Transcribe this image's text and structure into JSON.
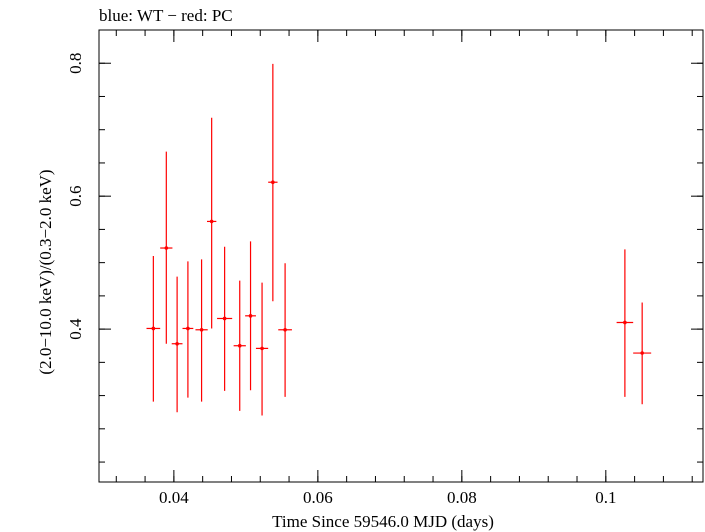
{
  "chart_data": {
    "type": "scatter",
    "title": "blue: WT − red: PC",
    "xlabel": "Time Since 59546.0 MJD (days)",
    "ylabel": "(2.0−10.0 keV)/(0.3−2.0 keV)",
    "xlim": [
      0.0296,
      0.1135
    ],
    "ylim": [
      0.17,
      0.85
    ],
    "x_ticks": [
      0.04,
      0.06,
      0.08,
      0.1
    ],
    "x_tick_labels": [
      "0.04",
      "0.06",
      "0.08",
      "0.1"
    ],
    "y_ticks": [
      0.4,
      0.6,
      0.8
    ],
    "y_tick_labels": [
      "0.4",
      "0.6",
      "0.8"
    ],
    "grid": false,
    "series": [
      {
        "color": "#ff0000",
        "points": [
          {
            "x": 0.03715,
            "xerr": 0.00095,
            "y": 0.401,
            "ylo": 0.291,
            "yhi": 0.51
          },
          {
            "x": 0.03895,
            "xerr": 0.00085,
            "y": 0.522,
            "ylo": 0.378,
            "yhi": 0.667
          },
          {
            "x": 0.04045,
            "xerr": 0.00075,
            "y": 0.378,
            "ylo": 0.275,
            "yhi": 0.479
          },
          {
            "x": 0.04195,
            "xerr": 0.00075,
            "y": 0.401,
            "ylo": 0.297,
            "yhi": 0.502
          },
          {
            "x": 0.04385,
            "xerr": 0.00085,
            "y": 0.399,
            "ylo": 0.291,
            "yhi": 0.505
          },
          {
            "x": 0.04525,
            "xerr": 0.00065,
            "y": 0.562,
            "ylo": 0.401,
            "yhi": 0.718
          },
          {
            "x": 0.04705,
            "xerr": 0.00105,
            "y": 0.416,
            "ylo": 0.307,
            "yhi": 0.524
          },
          {
            "x": 0.04915,
            "xerr": 0.00085,
            "y": 0.375,
            "ylo": 0.277,
            "yhi": 0.473
          },
          {
            "x": 0.05065,
            "xerr": 0.00075,
            "y": 0.42,
            "ylo": 0.308,
            "yhi": 0.532
          },
          {
            "x": 0.05225,
            "xerr": 0.00085,
            "y": 0.371,
            "ylo": 0.27,
            "yhi": 0.47
          },
          {
            "x": 0.05375,
            "xerr": 0.00065,
            "y": 0.621,
            "ylo": 0.442,
            "yhi": 0.799
          },
          {
            "x": 0.05545,
            "xerr": 0.00095,
            "y": 0.399,
            "ylo": 0.298,
            "yhi": 0.499
          },
          {
            "x": 0.10265,
            "xerr": 0.00115,
            "y": 0.41,
            "ylo": 0.298,
            "yhi": 0.52
          },
          {
            "x": 0.10505,
            "xerr": 0.00125,
            "y": 0.364,
            "ylo": 0.287,
            "yhi": 0.44
          }
        ]
      }
    ]
  }
}
